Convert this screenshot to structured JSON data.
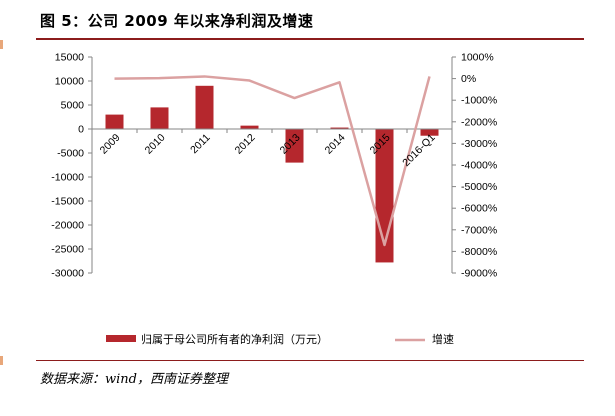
{
  "figure": {
    "title": "图 5：公司 2009 年以来净利润及增速",
    "source": "数据来源：wind，西南证券整理"
  },
  "colors": {
    "bar": "#b5272d",
    "line": "#dba1a1",
    "rule": "#8c1c1c",
    "axis": "#868686"
  },
  "chart_data": {
    "type": "bar",
    "categories": [
      "2009",
      "2010",
      "2011",
      "2012",
      "2013",
      "2014",
      "2015",
      "2016-Q1"
    ],
    "series": [
      {
        "name": "归属于母公司所有者的净利润（万元）",
        "type": "bar",
        "axis": "left",
        "values": [
          3000,
          4500,
          9000,
          700,
          -7000,
          300,
          -27800,
          -1400
        ]
      },
      {
        "name": "增速",
        "type": "line",
        "axis": "right",
        "unit": "%",
        "values": [
          0,
          20,
          100,
          -90,
          -900,
          -170,
          -7700,
          100
        ]
      }
    ],
    "y_left": {
      "ylim": [
        -30000,
        15000
      ],
      "ticks": [
        "15000",
        "10000",
        "5000",
        "0",
        "-5000",
        "-10000",
        "-15000",
        "-20000",
        "-25000",
        "-30000"
      ],
      "tick_values": [
        15000,
        10000,
        5000,
        0,
        -5000,
        -10000,
        -15000,
        -20000,
        -25000,
        -30000
      ]
    },
    "y_right": {
      "ylim": [
        -9000,
        1000
      ],
      "ticks": [
        "1000%",
        "0%",
        "-1000%",
        "-2000%",
        "-3000%",
        "-4000%",
        "-5000%",
        "-6000%",
        "-7000%",
        "-8000%",
        "-9000%"
      ],
      "tick_values": [
        1000,
        0,
        -1000,
        -2000,
        -3000,
        -4000,
        -5000,
        -6000,
        -7000,
        -8000,
        -9000
      ]
    },
    "grid": false,
    "legend_position": "bottom"
  }
}
